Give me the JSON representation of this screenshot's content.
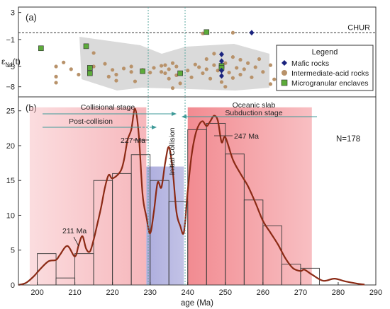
{
  "chart_data": [
    {
      "panel": "(a)",
      "type": "scatter",
      "ylabel_main": "ε",
      "ylabel_sub": "Nd",
      "ylabel_tail": "(t)",
      "yticks": [
        "3",
        "−1",
        "−5",
        "−8"
      ],
      "ytick_values": [
        3,
        -1,
        -5,
        -8
      ],
      "xlim": [
        195,
        290
      ],
      "ylim": [
        -9.5,
        3.8
      ],
      "reference_line": {
        "label": "CHUR",
        "y": 0
      },
      "legend_title": "Legend",
      "legend_position": "right",
      "series": [
        {
          "name": "Mafic rocks",
          "marker": "diamond",
          "color": "#1a237e",
          "points": [
            [
              257,
              0
            ],
            [
              249,
              -3.2
            ],
            [
              249,
              -4.2
            ],
            [
              249,
              -5.6
            ],
            [
              249,
              -6.4
            ]
          ]
        },
        {
          "name": "Intermediate-acid rocks",
          "marker": "circle",
          "color": "#b8926a",
          "points": [
            [
              205,
              -5.0
            ],
            [
              205,
              -6.5
            ],
            [
              205,
              -7.4
            ],
            [
              207,
              -4.4
            ],
            [
              209,
              -5.4
            ],
            [
              211,
              -6.2
            ],
            [
              215,
              -3.0
            ],
            [
              215,
              -5.0
            ],
            [
              218,
              -4.6
            ],
            [
              219,
              -6.5
            ],
            [
              220,
              -5.5
            ],
            [
              221,
              -7.1
            ],
            [
              223,
              -5.3
            ],
            [
              225,
              -5.0
            ],
            [
              225,
              -5.8
            ],
            [
              226,
              -7.2
            ],
            [
              228,
              -5.5
            ],
            [
              230,
              -5.9
            ],
            [
              231,
              -5.2
            ],
            [
              233,
              -4.9
            ],
            [
              233,
              -5.8
            ],
            [
              234,
              -4.8
            ],
            [
              234,
              -6.0
            ],
            [
              235,
              -5.4
            ],
            [
              235,
              -6.8
            ],
            [
              236,
              -4.5
            ],
            [
              237,
              -5.0
            ],
            [
              237,
              -6.3
            ],
            [
              238,
              -7.5
            ],
            [
              240,
              -5.6
            ],
            [
              241,
              -6.6
            ],
            [
              242,
              -4.7
            ],
            [
              243,
              -5.1
            ],
            [
              244,
              -6.0
            ],
            [
              245,
              -3.9
            ],
            [
              245,
              -5.4
            ],
            [
              246,
              -6.8
            ],
            [
              247,
              -3.1
            ],
            [
              247,
              -4.8
            ],
            [
              248,
              -5.6
            ],
            [
              249,
              -7.3
            ],
            [
              250,
              -4.5
            ],
            [
              251,
              -5.9
            ],
            [
              252,
              -3.6
            ],
            [
              252,
              -6.7
            ],
            [
              253,
              -5.2
            ],
            [
              254,
              -4.0
            ],
            [
              254,
              -6.2
            ],
            [
              255,
              -5.4
            ],
            [
              256,
              -4.5
            ],
            [
              257,
              -6.6
            ],
            [
              258,
              -5.1
            ],
            [
              259,
              -3.9
            ],
            [
              260,
              -5.8
            ],
            [
              262,
              -4.8
            ],
            [
              263,
              -6.9
            ],
            [
              264,
              -5.3
            ],
            [
              266,
              -6.0
            ],
            [
              268,
              -6.4
            ],
            [
              270,
              -5.5
            ],
            [
              272,
              -4.8
            ],
            [
              274,
              -6.2
            ],
            [
              262,
              -7.6
            ],
            [
              250,
              -8.0
            ],
            [
              236,
              -8.2
            ],
            [
              221,
              -6.2
            ],
            [
              244,
              -0.1
            ],
            [
              252,
              0.0
            ]
          ]
        },
        {
          "name": "Microgranular enclaves",
          "marker": "square",
          "color": "#5cab3a",
          "points": [
            [
              201,
              -2.3
            ],
            [
              213,
              -2.0
            ],
            [
              214,
              -5.2
            ],
            [
              214,
              -6.0
            ],
            [
              228,
              -5.7
            ],
            [
              238,
              -6.0
            ],
            [
              245,
              0.1
            ],
            [
              249,
              -4.9
            ],
            [
              249,
              -5.2
            ]
          ]
        }
      ]
    },
    {
      "panel": "(b)",
      "type": "bar",
      "annotation_N": "N=178",
      "xlabel": "age (Ma)",
      "xlim": [
        195,
        290
      ],
      "ylim": [
        0,
        27
      ],
      "xticks": [
        200,
        210,
        220,
        230,
        240,
        250,
        260,
        270,
        280,
        290
      ],
      "yticks": [
        0,
        5,
        10,
        15,
        20,
        25
      ],
      "histogram": {
        "bin_width": 5,
        "bins": [
          {
            "start": 200,
            "count": 4.5
          },
          {
            "start": 205,
            "count": 1
          },
          {
            "start": 210,
            "count": 4.5
          },
          {
            "start": 215,
            "count": 15
          },
          {
            "start": 220,
            "count": 16
          },
          {
            "start": 225,
            "count": 18.7
          },
          {
            "start": 230,
            "count": 15
          },
          {
            "start": 235,
            "count": 12
          },
          {
            "start": 240,
            "count": 22.3
          },
          {
            "start": 245,
            "count": 23.2
          },
          {
            "start": 250,
            "count": 18.8
          },
          {
            "start": 255,
            "count": 12.2
          },
          {
            "start": 260,
            "count": 8.5
          },
          {
            "start": 265,
            "count": 3
          },
          {
            "start": 270,
            "count": 2.4
          }
        ]
      },
      "probability_curve": {
        "color": "#8b2a15",
        "points": [
          [
            195,
            0
          ],
          [
            197,
            0.3
          ],
          [
            199,
            1.2
          ],
          [
            201,
            2.4
          ],
          [
            203,
            3.4
          ],
          [
            205,
            3.6
          ],
          [
            206,
            4.3
          ],
          [
            208,
            5.6
          ],
          [
            210,
            4.1
          ],
          [
            211,
            5.7
          ],
          [
            212,
            7.0
          ],
          [
            213,
            5.2
          ],
          [
            214,
            4.8
          ],
          [
            215,
            6.5
          ],
          [
            216,
            8.8
          ],
          [
            217,
            11.2
          ],
          [
            218,
            14.0
          ],
          [
            219,
            15.8
          ],
          [
            220,
            15.3
          ],
          [
            222,
            16.2
          ],
          [
            223,
            17.8
          ],
          [
            224,
            20.8
          ],
          [
            225,
            22.3
          ],
          [
            226,
            25.3
          ],
          [
            227,
            21.5
          ],
          [
            228,
            13.0
          ],
          [
            229,
            9.8
          ],
          [
            230,
            7.4
          ],
          [
            231,
            10.5
          ],
          [
            232,
            14.7
          ],
          [
            233,
            14.0
          ],
          [
            234,
            17.5
          ],
          [
            235,
            19.8
          ],
          [
            236,
            16.5
          ],
          [
            237,
            10.5
          ],
          [
            238,
            8.5
          ],
          [
            239,
            7.6
          ],
          [
            240,
            13.5
          ],
          [
            241,
            18.5
          ],
          [
            242,
            21.5
          ],
          [
            243,
            23.0
          ],
          [
            244,
            23.5
          ],
          [
            245,
            22.8
          ],
          [
            246,
            23.5
          ],
          [
            247,
            24.3
          ],
          [
            248,
            23.6
          ],
          [
            249,
            20.5
          ],
          [
            250,
            21.2
          ],
          [
            252,
            18.0
          ],
          [
            254,
            16.0
          ],
          [
            256,
            14.2
          ],
          [
            258,
            11.8
          ],
          [
            260,
            9.2
          ],
          [
            262,
            7.5
          ],
          [
            264,
            5.8
          ],
          [
            266,
            3.8
          ],
          [
            268,
            2.4
          ],
          [
            270,
            2.0
          ],
          [
            271,
            2.2
          ],
          [
            273,
            1.5
          ],
          [
            276,
            0.6
          ],
          [
            279,
            0.9
          ],
          [
            282,
            0.5
          ],
          [
            285,
            0.2
          ],
          [
            287,
            0.05
          ]
        ]
      },
      "shaded_regions": [
        {
          "name": "collisional",
          "x": [
            198,
            229
          ],
          "y": [
            0,
            25.5
          ],
          "color": "#f6b3b8"
        },
        {
          "name": "initial",
          "x": [
            229,
            239
          ],
          "y": [
            0,
            17
          ],
          "color": "#a9a9dc"
        },
        {
          "name": "subduction",
          "x": [
            240,
            273
          ],
          "y": [
            0,
            25.5
          ],
          "color": "#f28b91"
        }
      ],
      "vertical_lines": [
        229.5,
        239.3
      ],
      "stage_labels": {
        "collisional": "Collisional stage",
        "post_collision": "Post-collision",
        "initial": "Initial Collision",
        "oceanic_1": "Oceanic slab",
        "oceanic_2": "Subduction stage"
      },
      "peak_labels": [
        {
          "text": "227 Ma",
          "x": 227,
          "y": 25.3
        },
        {
          "text": "211 Ma",
          "x": 211,
          "y": 5.7
        },
        {
          "text": "247 Ma",
          "x": 247,
          "y": 24.3
        }
      ]
    }
  ]
}
